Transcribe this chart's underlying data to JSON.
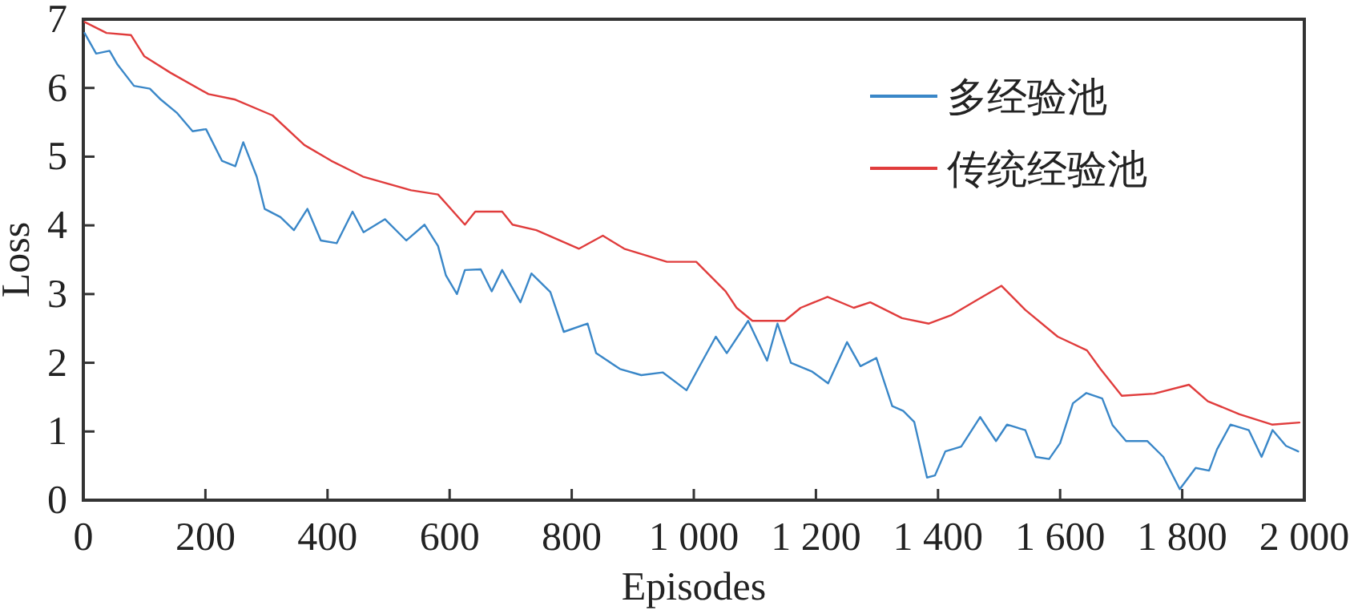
{
  "chart_data": {
    "type": "line",
    "xlabel": "Episodes",
    "ylabel": "Loss",
    "xlim": [
      0,
      2000
    ],
    "ylim": [
      0,
      7
    ],
    "xticks": [
      0,
      200,
      400,
      600,
      800,
      {
        "value": 1000,
        "label": "1 000"
      },
      {
        "value": 1200,
        "label": "1 200"
      },
      {
        "value": 1400,
        "label": "1 400"
      },
      {
        "value": 1600,
        "label": "1 600"
      },
      {
        "value": 1800,
        "label": "1 800"
      },
      {
        "value": 2000,
        "label": "2 000"
      }
    ],
    "yticks": [
      0,
      1,
      2,
      3,
      4,
      5,
      6,
      7
    ],
    "legend": "top right",
    "series": [
      {
        "name": "多经验池",
        "color": "#3a87c8",
        "x": [
          2,
          21,
          43,
          56,
          83,
          109,
          127,
          153,
          179,
          201,
          227,
          249,
          262,
          284,
          297,
          323,
          345,
          367,
          389,
          415,
          441,
          459,
          494,
          529,
          559,
          581,
          594,
          612,
          625,
          651,
          669,
          686,
          716,
          734,
          765,
          787,
          826,
          840,
          879,
          914,
          949,
          988,
          1010,
          1036,
          1054,
          1089,
          1120,
          1137,
          1159,
          1194,
          1220,
          1251,
          1273,
          1299,
          1325,
          1343,
          1361,
          1382,
          1395,
          1412,
          1438,
          1469,
          1495,
          1513,
          1543,
          1560,
          1582,
          1600,
          1621,
          1643,
          1669,
          1686,
          1708,
          1743,
          1769,
          1796,
          1822,
          1844,
          1857,
          1879,
          1909,
          1930,
          1948,
          1970,
          1990
        ],
        "values": [
          6.8,
          6.5,
          6.54,
          6.34,
          6.03,
          5.99,
          5.83,
          5.64,
          5.37,
          5.4,
          4.94,
          4.86,
          5.21,
          4.71,
          4.24,
          4.12,
          3.93,
          4.24,
          3.78,
          3.74,
          4.2,
          3.9,
          4.09,
          3.78,
          4.01,
          3.7,
          3.27,
          3.0,
          3.35,
          3.36,
          3.04,
          3.35,
          2.88,
          3.3,
          3.03,
          2.45,
          2.57,
          2.14,
          1.91,
          1.82,
          1.86,
          1.6,
          1.96,
          2.38,
          2.14,
          2.61,
          2.03,
          2.57,
          2.0,
          1.87,
          1.7,
          2.3,
          1.95,
          2.07,
          1.37,
          1.3,
          1.14,
          0.33,
          0.36,
          0.71,
          0.78,
          1.21,
          0.86,
          1.1,
          1.02,
          0.63,
          0.6,
          0.83,
          1.41,
          1.56,
          1.48,
          1.09,
          0.86,
          0.86,
          0.63,
          0.16,
          0.47,
          0.43,
          0.74,
          1.1,
          1.02,
          0.63,
          1.02,
          0.79,
          0.71
        ]
      },
      {
        "name": "传统经验池",
        "color": "#e03c3c",
        "x": [
          2,
          38,
          78,
          100,
          143,
          205,
          249,
          310,
          362,
          406,
          458,
          537,
          581,
          625,
          642,
          686,
          703,
          742,
          812,
          851,
          886,
          956,
          1004,
          1052,
          1070,
          1096,
          1149,
          1175,
          1219,
          1262,
          1289,
          1341,
          1385,
          1421,
          1465,
          1504,
          1543,
          1596,
          1644,
          1666,
          1701,
          1754,
          1811,
          1842,
          1894,
          1947,
          1992
        ],
        "values": [
          6.96,
          6.8,
          6.77,
          6.46,
          6.22,
          5.91,
          5.83,
          5.6,
          5.17,
          4.94,
          4.71,
          4.51,
          4.45,
          4.01,
          4.2,
          4.2,
          4.01,
          3.93,
          3.66,
          3.85,
          3.66,
          3.47,
          3.47,
          3.04,
          2.8,
          2.61,
          2.61,
          2.8,
          2.96,
          2.8,
          2.88,
          2.65,
          2.57,
          2.69,
          2.92,
          3.12,
          2.77,
          2.38,
          2.18,
          1.91,
          1.52,
          1.55,
          1.68,
          1.44,
          1.25,
          1.1,
          1.13
        ]
      }
    ]
  }
}
